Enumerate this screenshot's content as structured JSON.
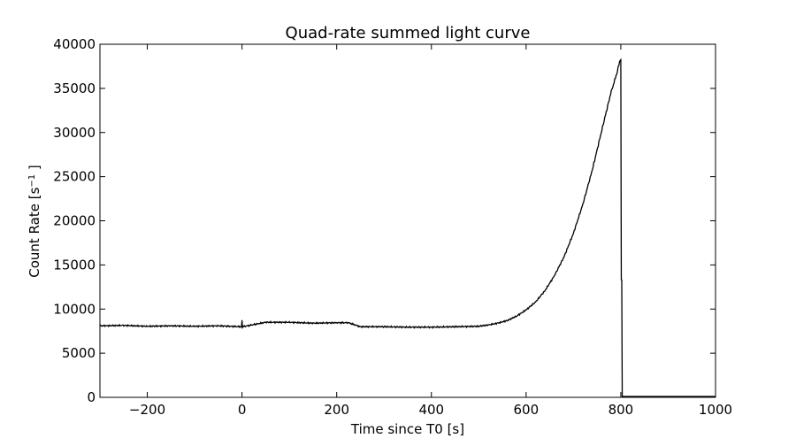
{
  "chart_data": {
    "type": "line",
    "title": "Quad-rate summed light curve",
    "xlabel": "Time since T0 [s]",
    "ylabel_prefix": "Count Rate [s",
    "ylabel_exp": "−1",
    "ylabel_suffix": " ]",
    "xlim": [
      -300,
      1000
    ],
    "ylim": [
      0,
      40000
    ],
    "xticks": [
      -200,
      0,
      200,
      400,
      600,
      800,
      1000
    ],
    "xtick_labels": [
      "−200",
      "0",
      "200",
      "400",
      "600",
      "800",
      "1000"
    ],
    "yticks": [
      0,
      5000,
      10000,
      15000,
      20000,
      25000,
      30000,
      35000,
      40000
    ],
    "ytick_labels": [
      "0",
      "5000",
      "10000",
      "15000",
      "20000",
      "25000",
      "30000",
      "35000",
      "40000"
    ],
    "grid": false,
    "line_color": "#000000",
    "series": [
      {
        "x": [
          -300,
          -250,
          -200,
          -150,
          -100,
          -50,
          -1,
          0,
          1,
          50,
          100,
          150,
          200,
          225,
          250,
          300,
          350,
          400,
          450,
          500,
          520,
          540,
          560,
          580,
          600,
          620,
          640,
          660,
          680,
          700,
          720,
          740,
          760,
          780,
          790,
          799,
          800,
          801,
          802,
          803,
          805,
          850,
          900,
          950,
          1000
        ],
        "y": [
          8100,
          8150,
          8050,
          8100,
          8050,
          8100,
          8000,
          8700,
          8000,
          8500,
          8500,
          8400,
          8450,
          8450,
          8000,
          8000,
          7950,
          7950,
          8000,
          8050,
          8200,
          8400,
          8700,
          9200,
          9900,
          10800,
          12100,
          13800,
          15900,
          18600,
          21900,
          25800,
          30300,
          34700,
          36400,
          38300,
          38300,
          13300,
          13300,
          100,
          100,
          100,
          100,
          100,
          100
        ]
      }
    ]
  }
}
